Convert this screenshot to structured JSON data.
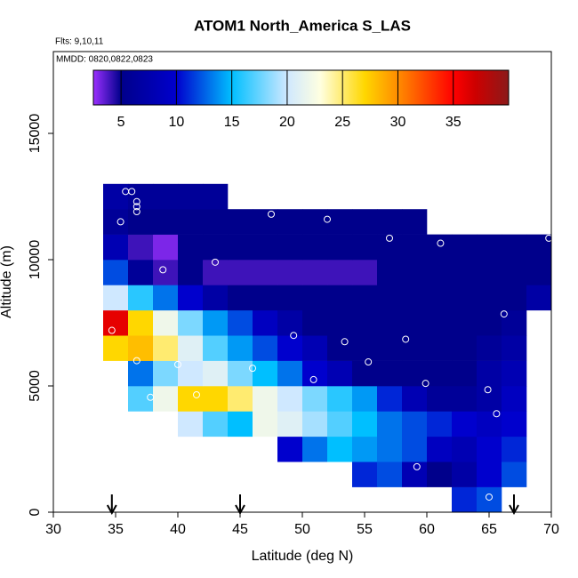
{
  "chart_data": {
    "type": "heatmap",
    "title": "ATOM1 North_America S_LAS",
    "annotations": [
      "Flts: 9,10,11",
      "MMDD: 0820,0822,0823"
    ],
    "x_label": "Latitude (deg N)",
    "y_label": "Altitude (m)",
    "xlim": [
      30,
      70
    ],
    "ylim": [
      0,
      18240
    ],
    "xticks": [
      30,
      35,
      40,
      45,
      50,
      55,
      60,
      65,
      70
    ],
    "yticks": [
      0,
      5000,
      10000,
      15000
    ],
    "xbins": [
      34,
      36,
      38,
      40,
      42,
      44,
      46,
      48,
      50,
      52,
      54,
      56,
      58,
      60,
      62,
      64,
      66,
      68,
      70
    ],
    "ybins": [
      0,
      1000,
      2000,
      3000,
      4000,
      5000,
      6000,
      7000,
      8000,
      9000,
      10000,
      11000,
      12000,
      13000
    ],
    "values": [
      [
        null,
        null,
        null,
        null,
        null,
        null,
        null,
        null,
        null,
        null,
        null,
        null,
        null,
        null,
        11,
        12,
        null,
        null
      ],
      [
        null,
        null,
        null,
        null,
        null,
        null,
        null,
        null,
        null,
        null,
        11,
        12,
        8,
        5,
        7,
        10,
        12,
        null
      ],
      [
        null,
        null,
        null,
        null,
        null,
        null,
        null,
        10,
        13,
        15,
        14,
        13,
        12,
        9,
        8,
        10,
        11,
        null
      ],
      [
        null,
        null,
        null,
        20,
        17,
        15,
        22,
        21,
        19,
        17,
        15,
        13,
        12,
        11,
        10,
        9,
        10,
        null
      ],
      [
        null,
        17,
        22,
        27,
        27,
        25,
        22,
        20,
        18,
        16,
        14,
        11,
        8,
        6,
        6,
        7,
        9,
        null
      ],
      [
        null,
        13,
        18,
        20,
        21,
        18,
        15,
        13,
        10,
        8,
        5,
        5,
        5,
        5,
        5,
        7,
        8,
        null
      ],
      [
        27,
        28,
        25,
        21,
        17,
        14,
        12,
        10,
        8,
        5,
        5,
        5,
        5,
        5,
        5,
        6,
        7,
        null
      ],
      [
        36,
        27,
        22,
        18,
        14,
        12,
        9,
        7,
        5,
        5,
        5,
        5,
        5,
        5,
        5,
        5,
        6,
        null
      ],
      [
        20,
        16,
        13,
        10,
        7,
        5,
        5,
        5,
        5,
        5,
        5,
        5,
        5,
        5,
        5,
        5,
        5,
        7
      ],
      [
        12,
        6,
        4,
        5,
        4,
        4,
        4,
        4,
        4,
        4,
        4,
        5,
        5,
        5,
        5,
        5,
        5,
        5
      ],
      [
        8,
        4,
        3,
        5,
        5,
        5,
        5,
        5,
        5,
        5,
        5,
        5,
        5,
        5,
        5,
        5,
        5,
        5
      ],
      [
        6,
        5,
        5,
        5,
        5,
        5,
        5,
        5,
        5,
        5,
        5,
        5,
        5,
        null,
        null,
        null,
        null,
        null
      ],
      [
        7,
        6,
        6,
        6,
        6,
        null,
        null,
        null,
        null,
        null,
        null,
        null,
        null,
        null,
        null,
        null,
        null,
        null
      ]
    ],
    "zlim": [
      2.5,
      40
    ],
    "zticks": [
      5,
      10,
      15,
      20,
      25,
      30,
      35
    ],
    "colorscale": [
      [
        2.5,
        "#9b30ff"
      ],
      [
        5,
        "#00008b"
      ],
      [
        10,
        "#0000cd"
      ],
      [
        15,
        "#00bfff"
      ],
      [
        20,
        "#cfe8ff"
      ],
      [
        23,
        "#ffffe0"
      ],
      [
        27,
        "#ffd700"
      ],
      [
        30,
        "#ff8c00"
      ],
      [
        35,
        "#ff0000"
      ],
      [
        37,
        "#cd0000"
      ],
      [
        40,
        "#8b1a1a"
      ]
    ],
    "points": {
      "x": [
        35.8,
        36.3,
        36.7,
        36.7,
        36.7,
        35.4,
        47.5,
        52,
        57,
        61.1,
        69.8,
        43,
        38.8,
        34.7,
        49.3,
        53.4,
        58.3,
        66.2,
        36.7,
        40,
        46,
        50.9,
        55.3,
        59.9,
        64.9,
        41.5,
        37.8,
        65.6,
        59.2,
        65
      ],
      "y": [
        12700,
        12700,
        12300,
        12100,
        11900,
        11500,
        11800,
        11600,
        10850,
        10650,
        10850,
        9900,
        9600,
        7200,
        7000,
        6750,
        6850,
        7850,
        6000,
        5850,
        5700,
        5250,
        5950,
        5100,
        4850,
        4650,
        4550,
        3900,
        1800,
        600
      ]
    },
    "arrows": [
      34.7,
      45,
      67
    ]
  }
}
